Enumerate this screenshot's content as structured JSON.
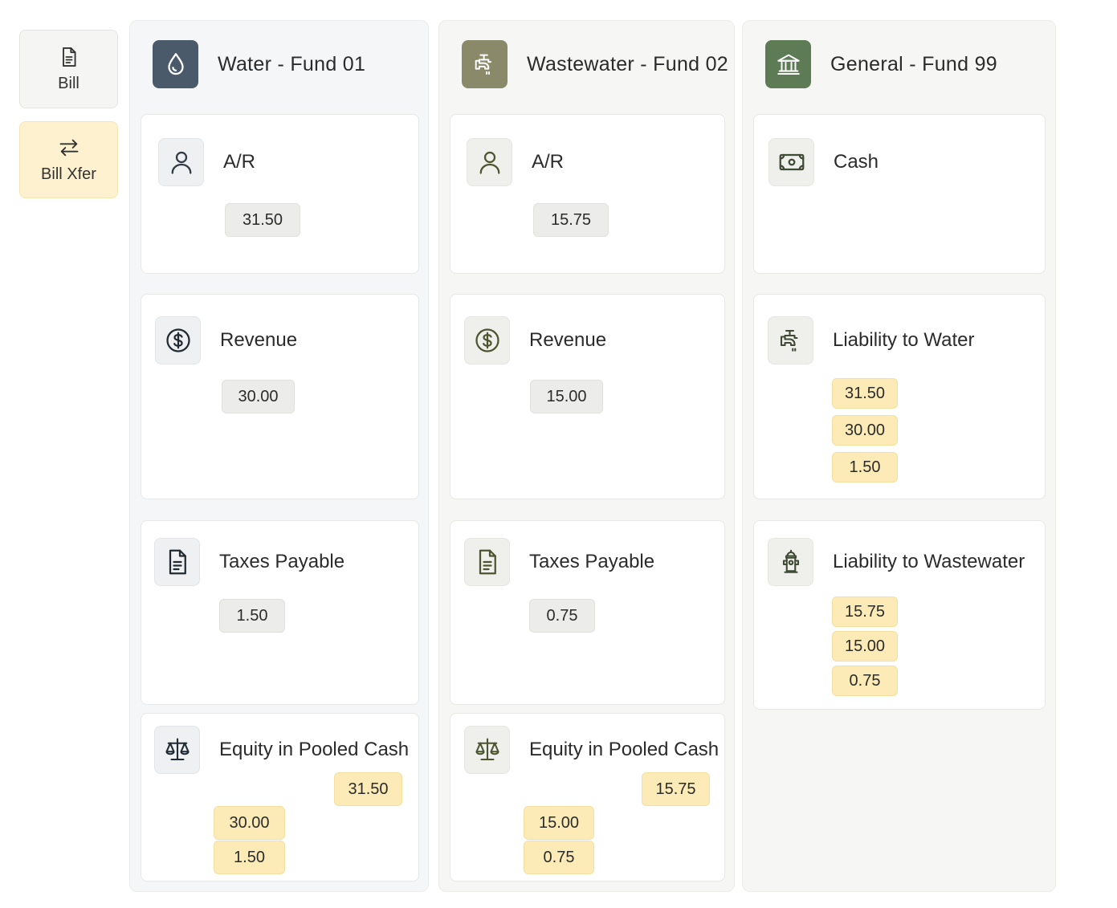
{
  "sidebar": {
    "items": [
      {
        "label": "Bill",
        "icon": "document-icon"
      },
      {
        "label": "Bill Xfer",
        "icon": "transfer-arrows-icon"
      }
    ]
  },
  "columns": [
    {
      "title": "Water - Fund 01",
      "icon": "water-drop-icon",
      "icon_bg": "#4a5a6b",
      "cards": [
        {
          "title": "A/R",
          "icon": "person-icon",
          "chips": [
            "31.50"
          ]
        },
        {
          "title": "Revenue",
          "icon": "dollar-circle-icon",
          "chips": [
            "30.00"
          ]
        },
        {
          "title": "Taxes Payable",
          "icon": "document-icon",
          "chips": [
            "1.50"
          ]
        },
        {
          "title": "Equity in Pooled Cash",
          "icon": "scales-icon",
          "chips": [
            "31.50",
            "30.00",
            "1.50"
          ]
        }
      ]
    },
    {
      "title": "Wastewater - Fund 02",
      "icon": "faucet-icon",
      "icon_bg": "#8a8a6a",
      "cards": [
        {
          "title": "A/R",
          "icon": "person-icon",
          "chips": [
            "15.75"
          ]
        },
        {
          "title": "Revenue",
          "icon": "dollar-circle-icon",
          "chips": [
            "15.00"
          ]
        },
        {
          "title": "Taxes Payable",
          "icon": "document-icon",
          "chips": [
            "0.75"
          ]
        },
        {
          "title": "Equity in Pooled Cash",
          "icon": "scales-icon",
          "chips": [
            "15.75",
            "15.00",
            "0.75"
          ]
        }
      ]
    },
    {
      "title": "General - Fund 99",
      "icon": "bank-icon",
      "icon_bg": "#5d7b55",
      "cards": [
        {
          "title": "Cash",
          "icon": "cash-bill-icon",
          "chips": []
        },
        {
          "title": "Liability to Water",
          "icon": "faucet-icon",
          "chips": [
            "31.50",
            "30.00",
            "1.50"
          ]
        },
        {
          "title": "Liability to Wastewater",
          "icon": "hydrant-icon",
          "chips": [
            "15.75",
            "15.00",
            "0.75"
          ]
        }
      ]
    }
  ],
  "colors": {
    "chip_gray": "#ececea",
    "chip_yellow": "#fcebb6",
    "water_icon_tint": "#374a5e",
    "ww_icon_tint": "#4d5530",
    "gen_icon_tint": "#3f4a35"
  }
}
